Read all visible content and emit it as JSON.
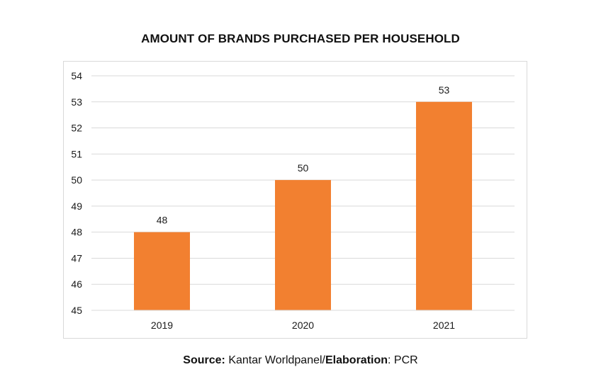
{
  "chart_data": {
    "type": "bar",
    "title": "AMOUNT OF BRANDS PURCHASED PER HOUSEHOLD",
    "categories": [
      "2019",
      "2020",
      "2021"
    ],
    "values": [
      48,
      50,
      53
    ],
    "data_labels": [
      "48",
      "50",
      "53"
    ],
    "ylim": [
      45,
      54
    ],
    "yticks": [
      "45",
      "46",
      "47",
      "48",
      "49",
      "50",
      "51",
      "52",
      "53",
      "54"
    ],
    "xlabel": "",
    "ylabel": "",
    "grid": true,
    "bar_color": "#F28030",
    "grid_color": "#d9d9d9",
    "text_color": "#1a1a1a"
  },
  "footer": {
    "source_label": "Source:",
    "source_text": " Kantar Worldpanel/",
    "elaboration_label": "Elaboration",
    "elaboration_text": ": PCR"
  }
}
